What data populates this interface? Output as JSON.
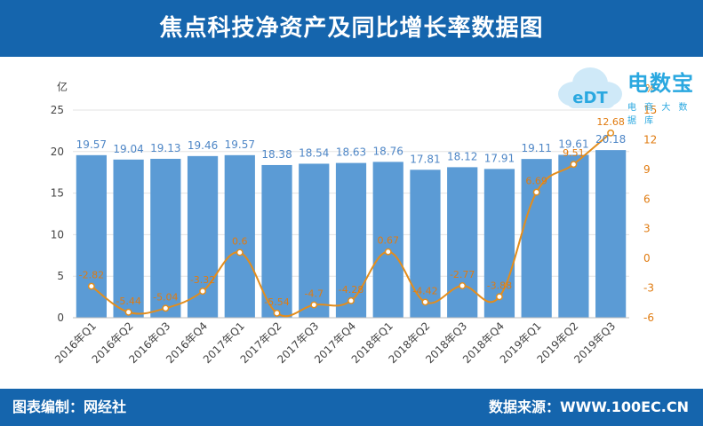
{
  "header": {
    "title": "焦点科技净资产及同比增长率数据图"
  },
  "footer": {
    "left": "图表编制：网经社",
    "right": "数据来源：WWW.100EC.CN"
  },
  "logo": {
    "brand": "电数宝",
    "sub": "电 商 大 数 据 库",
    "cloud_text": "eDT"
  },
  "colors": {
    "bar": "#5b9bd5",
    "line": "#e38d1c",
    "header": "#1565ad",
    "logo": "#2aa8e0"
  },
  "chart_data": {
    "type": "bar+line",
    "categories": [
      "2016年Q1",
      "2016年Q2",
      "2016年Q3",
      "2016年Q4",
      "2017年Q1",
      "2017年Q2",
      "2017年Q3",
      "2017年Q4",
      "2018年Q1",
      "2018年Q2",
      "2018年Q3",
      "2018年Q4",
      "2019年Q1",
      "2019年Q2",
      "2019年Q3"
    ],
    "series": [
      {
        "type": "bar",
        "axis": "left",
        "values": [
          19.57,
          19.04,
          19.13,
          19.46,
          19.57,
          18.38,
          18.54,
          18.63,
          18.76,
          17.81,
          18.12,
          17.91,
          19.11,
          19.61,
          20.18
        ],
        "labels": [
          "19.57",
          "19.04",
          "19.13",
          "19.46",
          "19.57",
          "18.38",
          "18.54",
          "18.63",
          "18.76",
          "17.81",
          "18.12",
          "17.91",
          "19.11",
          "19.61",
          "20.18"
        ]
      },
      {
        "type": "line",
        "axis": "right",
        "values": [
          -2.82,
          -5.44,
          -5.04,
          -3.32,
          0.6,
          -5.54,
          -4.7,
          -4.28,
          0.67,
          -4.42,
          -2.77,
          -3.88,
          6.69,
          9.51,
          12.68
        ],
        "labels": [
          "-2.82",
          "-5.44",
          "-5.04",
          "-3.32",
          "0.6",
          "-5.54",
          "-4.7",
          "-4.28",
          "0.67",
          "-4.42",
          "-2.77",
          "-3.88",
          "6.69",
          "9.51",
          "12.68"
        ]
      }
    ],
    "left_axis": {
      "unit": "亿",
      "ylim": [
        0,
        25
      ],
      "ticks": [
        0,
        5,
        10,
        15,
        20,
        25
      ]
    },
    "right_axis": {
      "unit": "%",
      "ylim": [
        -6,
        15
      ],
      "ticks": [
        -6,
        -3,
        0,
        3,
        6,
        9,
        12,
        15
      ]
    },
    "grid": true
  }
}
